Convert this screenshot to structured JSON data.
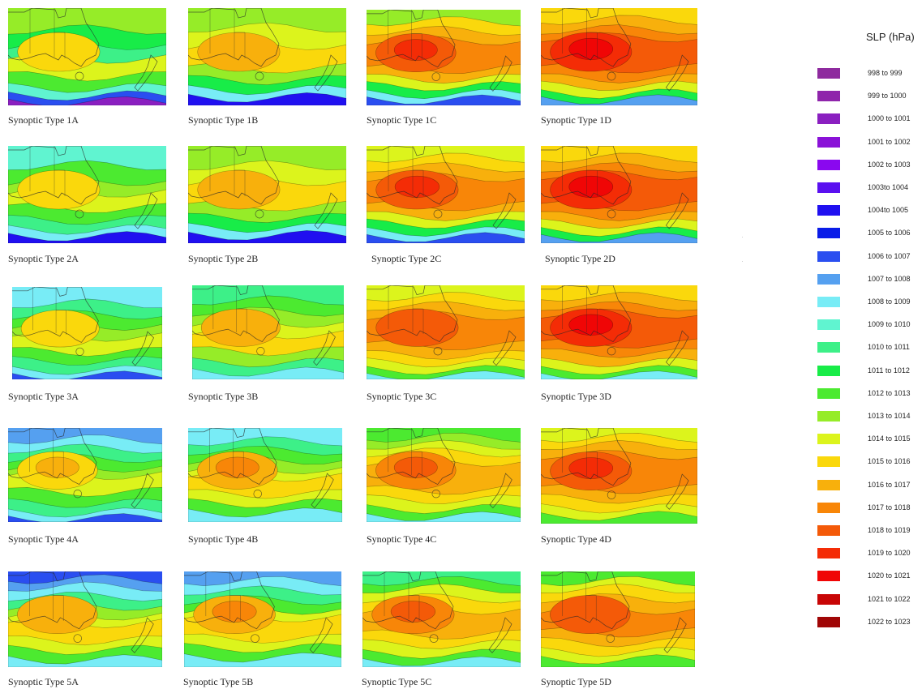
{
  "legend": {
    "title": "SLP (hPa)",
    "entries": [
      {
        "label": "998 to 999",
        "color": "#8e2a9e"
      },
      {
        "label": "999 to 1000",
        "color": "#8f25ab"
      },
      {
        "label": "1000 to 1001",
        "color": "#8a1fc0"
      },
      {
        "label": "1001 to 1002",
        "color": "#8a12d8"
      },
      {
        "label": "1002 to 1003",
        "color": "#8a08ef"
      },
      {
        "label": "1003to 1004",
        "color": "#5a10f0"
      },
      {
        "label": "1004to 1005",
        "color": "#2010f0"
      },
      {
        "label": "1005 to 1006",
        "color": "#0a1ce8"
      },
      {
        "label": "1006 to 1007",
        "color": "#2a4ef0"
      },
      {
        "label": "1007 to 1008",
        "color": "#55a0f0"
      },
      {
        "label": "1008 to 1009",
        "color": "#78ecf6"
      },
      {
        "label": "1009 to 1010",
        "color": "#60f4d0"
      },
      {
        "label": "1010 to 1011",
        "color": "#3df088"
      },
      {
        "label": "1011 to 1012",
        "color": "#18ec48"
      },
      {
        "label": "1012 to 1013",
        "color": "#4cea30"
      },
      {
        "label": "1013 to 1014",
        "color": "#96ec28"
      },
      {
        "label": "1014 to 1015",
        "color": "#dcf41c"
      },
      {
        "label": "1015 to 1016",
        "color": "#fad80c"
      },
      {
        "label": "1016 to 1017",
        "color": "#f8b00c"
      },
      {
        "label": "1017 to 1018",
        "color": "#f88608"
      },
      {
        "label": "1018 to 1019",
        "color": "#f45a08"
      },
      {
        "label": "1019 to 1020",
        "color": "#f42c06"
      },
      {
        "label": "1020 to 1021",
        "color": "#f00606"
      },
      {
        "label": "1021 to 1022",
        "color": "#c80606"
      },
      {
        "label": "1022 to 1023",
        "color": "#a00606"
      }
    ]
  },
  "panels": [
    {
      "caption": "Synoptic Type 1A",
      "bands": [
        [
          0.0,
          "#96ec28"
        ],
        [
          0.22,
          "#18ec48"
        ],
        [
          0.38,
          "#3df088"
        ],
        [
          0.52,
          "#dcf41c"
        ],
        [
          0.7,
          "#4cea30"
        ],
        [
          0.82,
          "#60f4d0"
        ],
        [
          0.9,
          "#2a4ef0"
        ],
        [
          0.96,
          "#8a1fc0"
        ]
      ],
      "core": "#fad80c",
      "core2": null
    },
    {
      "caption": "Synoptic Type 1B",
      "bands": [
        [
          0.0,
          "#96ec28"
        ],
        [
          0.2,
          "#dcf41c"
        ],
        [
          0.38,
          "#fad80c"
        ],
        [
          0.62,
          "#96ec28"
        ],
        [
          0.74,
          "#18ec48"
        ],
        [
          0.84,
          "#78ecf6"
        ],
        [
          0.92,
          "#2010f0"
        ]
      ],
      "core": "#f8b00c",
      "core2": null
    },
    {
      "caption": "Synoptic Type 1C",
      "bands": [
        [
          0.0,
          "#96ec28"
        ],
        [
          0.12,
          "#fad80c"
        ],
        [
          0.22,
          "#f8b00c"
        ],
        [
          0.32,
          "#f88608"
        ],
        [
          0.62,
          "#f8b00c"
        ],
        [
          0.72,
          "#dcf41c"
        ],
        [
          0.8,
          "#18ec48"
        ],
        [
          0.88,
          "#78ecf6"
        ],
        [
          0.94,
          "#2a4ef0"
        ]
      ],
      "core": "#f45a08",
      "core2": "#f42c06"
    },
    {
      "caption": "Synoptic Type 1D",
      "bands": [
        [
          0.0,
          "#fad80c"
        ],
        [
          0.12,
          "#f8b00c"
        ],
        [
          0.22,
          "#f88608"
        ],
        [
          0.3,
          "#f45a08"
        ],
        [
          0.62,
          "#f88608"
        ],
        [
          0.72,
          "#f8b00c"
        ],
        [
          0.8,
          "#dcf41c"
        ],
        [
          0.88,
          "#18ec48"
        ],
        [
          0.94,
          "#55a0f0"
        ]
      ],
      "core": "#f42c06",
      "core2": "#f00606"
    },
    {
      "caption": "Synoptic Type 2A",
      "bands": [
        [
          0.0,
          "#60f4d0"
        ],
        [
          0.2,
          "#4cea30"
        ],
        [
          0.36,
          "#96ec28"
        ],
        [
          0.48,
          "#dcf41c"
        ],
        [
          0.64,
          "#4cea30"
        ],
        [
          0.76,
          "#3df088"
        ],
        [
          0.86,
          "#78ecf6"
        ],
        [
          0.93,
          "#2010f0"
        ]
      ],
      "core": "#fad80c",
      "core2": null
    },
    {
      "caption": "Synoptic Type 2B",
      "bands": [
        [
          0.0,
          "#96ec28"
        ],
        [
          0.2,
          "#dcf41c"
        ],
        [
          0.36,
          "#fad80c"
        ],
        [
          0.62,
          "#96ec28"
        ],
        [
          0.74,
          "#18ec48"
        ],
        [
          0.84,
          "#78ecf6"
        ],
        [
          0.92,
          "#2010f0"
        ]
      ],
      "core": "#f8b00c",
      "core2": null
    },
    {
      "caption": "Synoptic Type 2C",
      "bands": [
        [
          0.0,
          "#dcf41c"
        ],
        [
          0.12,
          "#fad80c"
        ],
        [
          0.22,
          "#f8b00c"
        ],
        [
          0.32,
          "#f88608"
        ],
        [
          0.62,
          "#f8b00c"
        ],
        [
          0.72,
          "#dcf41c"
        ],
        [
          0.8,
          "#18ec48"
        ],
        [
          0.88,
          "#78ecf6"
        ],
        [
          0.94,
          "#2a4ef0"
        ]
      ],
      "core": "#f45a08",
      "core2": "#f42c06"
    },
    {
      "caption": "Synoptic Type 2D",
      "bands": [
        [
          0.0,
          "#fad80c"
        ],
        [
          0.12,
          "#f8b00c"
        ],
        [
          0.22,
          "#f88608"
        ],
        [
          0.3,
          "#f45a08"
        ],
        [
          0.62,
          "#f88608"
        ],
        [
          0.72,
          "#f8b00c"
        ],
        [
          0.8,
          "#dcf41c"
        ],
        [
          0.88,
          "#18ec48"
        ],
        [
          0.94,
          "#55a0f0"
        ]
      ],
      "core": "#f42c06",
      "core2": "#f00606"
    },
    {
      "caption": "Synoptic Type 3A",
      "bands": [
        [
          0.0,
          "#78ecf6"
        ],
        [
          0.18,
          "#3df088"
        ],
        [
          0.3,
          "#4cea30"
        ],
        [
          0.42,
          "#96ec28"
        ],
        [
          0.54,
          "#dcf41c"
        ],
        [
          0.7,
          "#4cea30"
        ],
        [
          0.8,
          "#3df088"
        ],
        [
          0.9,
          "#78ecf6"
        ],
        [
          0.96,
          "#2a4ef0"
        ]
      ],
      "core": "#fad80c",
      "core2": null
    },
    {
      "caption": "Synoptic Type 3B",
      "bands": [
        [
          0.0,
          "#3df088"
        ],
        [
          0.16,
          "#4cea30"
        ],
        [
          0.28,
          "#96ec28"
        ],
        [
          0.4,
          "#dcf41c"
        ],
        [
          0.52,
          "#fad80c"
        ],
        [
          0.7,
          "#96ec28"
        ],
        [
          0.82,
          "#3df088"
        ],
        [
          0.92,
          "#78ecf6"
        ]
      ],
      "core": "#f8b00c",
      "core2": null
    },
    {
      "caption": "Synoptic Type 3C",
      "bands": [
        [
          0.0,
          "#dcf41c"
        ],
        [
          0.12,
          "#fad80c"
        ],
        [
          0.22,
          "#f8b00c"
        ],
        [
          0.32,
          "#f88608"
        ],
        [
          0.64,
          "#f8b00c"
        ],
        [
          0.74,
          "#fad80c"
        ],
        [
          0.82,
          "#dcf41c"
        ],
        [
          0.9,
          "#4cea30"
        ],
        [
          0.96,
          "#78ecf6"
        ]
      ],
      "core": "#f45a08",
      "core2": null
    },
    {
      "caption": "Synoptic Type 3D",
      "bands": [
        [
          0.0,
          "#fad80c"
        ],
        [
          0.12,
          "#f8b00c"
        ],
        [
          0.22,
          "#f88608"
        ],
        [
          0.3,
          "#f45a08"
        ],
        [
          0.62,
          "#f88608"
        ],
        [
          0.72,
          "#f8b00c"
        ],
        [
          0.82,
          "#dcf41c"
        ],
        [
          0.9,
          "#4cea30"
        ],
        [
          0.96,
          "#78ecf6"
        ]
      ],
      "core": "#f42c06",
      "core2": "#f00606"
    },
    {
      "caption": "Synoptic Type 4A",
      "bands": [
        [
          0.0,
          "#55a0f0"
        ],
        [
          0.12,
          "#78ecf6"
        ],
        [
          0.22,
          "#3df088"
        ],
        [
          0.32,
          "#4cea30"
        ],
        [
          0.42,
          "#96ec28"
        ],
        [
          0.5,
          "#dcf41c"
        ],
        [
          0.68,
          "#4cea30"
        ],
        [
          0.8,
          "#3df088"
        ],
        [
          0.9,
          "#78ecf6"
        ],
        [
          0.96,
          "#2a4ef0"
        ]
      ],
      "core": "#fad80c",
      "core2": "#f8b00c"
    },
    {
      "caption": "Synoptic Type 4B",
      "bands": [
        [
          0.0,
          "#78ecf6"
        ],
        [
          0.14,
          "#3df088"
        ],
        [
          0.24,
          "#4cea30"
        ],
        [
          0.34,
          "#96ec28"
        ],
        [
          0.44,
          "#dcf41c"
        ],
        [
          0.52,
          "#fad80c"
        ],
        [
          0.7,
          "#dcf41c"
        ],
        [
          0.8,
          "#4cea30"
        ],
        [
          0.9,
          "#78ecf6"
        ]
      ],
      "core": "#f8b00c",
      "core2": "#f88608"
    },
    {
      "caption": "Synoptic Type 4C",
      "bands": [
        [
          0.0,
          "#4cea30"
        ],
        [
          0.1,
          "#96ec28"
        ],
        [
          0.18,
          "#dcf41c"
        ],
        [
          0.26,
          "#fad80c"
        ],
        [
          0.36,
          "#f8b00c"
        ],
        [
          0.66,
          "#fad80c"
        ],
        [
          0.76,
          "#dcf41c"
        ],
        [
          0.86,
          "#4cea30"
        ],
        [
          0.94,
          "#78ecf6"
        ]
      ],
      "core": "#f88608",
      "core2": "#f45a08"
    },
    {
      "caption": "Synoptic Type 4D",
      "bands": [
        [
          0.0,
          "#dcf41c"
        ],
        [
          0.1,
          "#fad80c"
        ],
        [
          0.18,
          "#f8b00c"
        ],
        [
          0.28,
          "#f88608"
        ],
        [
          0.64,
          "#f8b00c"
        ],
        [
          0.74,
          "#fad80c"
        ],
        [
          0.84,
          "#dcf41c"
        ],
        [
          0.92,
          "#4cea30"
        ]
      ],
      "core": "#f45a08",
      "core2": "#f42c06"
    },
    {
      "caption": "Synoptic Type 5A",
      "bands": [
        [
          0.0,
          "#2a4ef0"
        ],
        [
          0.08,
          "#55a0f0"
        ],
        [
          0.16,
          "#78ecf6"
        ],
        [
          0.26,
          "#3df088"
        ],
        [
          0.36,
          "#96ec28"
        ],
        [
          0.46,
          "#dcf41c"
        ],
        [
          0.54,
          "#fad80c"
        ],
        [
          0.72,
          "#dcf41c"
        ],
        [
          0.82,
          "#4cea30"
        ],
        [
          0.92,
          "#78ecf6"
        ]
      ],
      "core": "#f8b00c",
      "core2": null
    },
    {
      "caption": "Synoptic Type 5B",
      "bands": [
        [
          0.0,
          "#55a0f0"
        ],
        [
          0.1,
          "#78ecf6"
        ],
        [
          0.2,
          "#3df088"
        ],
        [
          0.3,
          "#4cea30"
        ],
        [
          0.4,
          "#dcf41c"
        ],
        [
          0.48,
          "#fad80c"
        ],
        [
          0.7,
          "#dcf41c"
        ],
        [
          0.8,
          "#4cea30"
        ],
        [
          0.9,
          "#78ecf6"
        ]
      ],
      "core": "#f8b00c",
      "core2": "#f88608"
    },
    {
      "caption": "Synoptic Type 5C",
      "bands": [
        [
          0.0,
          "#3df088"
        ],
        [
          0.1,
          "#4cea30"
        ],
        [
          0.18,
          "#dcf41c"
        ],
        [
          0.28,
          "#fad80c"
        ],
        [
          0.4,
          "#f8b00c"
        ],
        [
          0.66,
          "#fad80c"
        ],
        [
          0.76,
          "#dcf41c"
        ],
        [
          0.86,
          "#4cea30"
        ],
        [
          0.94,
          "#78ecf6"
        ]
      ],
      "core": "#f88608",
      "core2": "#f45a08"
    },
    {
      "caption": "Synoptic Type 5D",
      "bands": [
        [
          0.0,
          "#4cea30"
        ],
        [
          0.1,
          "#dcf41c"
        ],
        [
          0.18,
          "#fad80c"
        ],
        [
          0.28,
          "#f8b00c"
        ],
        [
          0.4,
          "#f88608"
        ],
        [
          0.64,
          "#f8b00c"
        ],
        [
          0.74,
          "#fad80c"
        ],
        [
          0.84,
          "#dcf41c"
        ],
        [
          0.92,
          "#4cea30"
        ]
      ],
      "core": "#f45a08",
      "core2": null
    }
  ]
}
